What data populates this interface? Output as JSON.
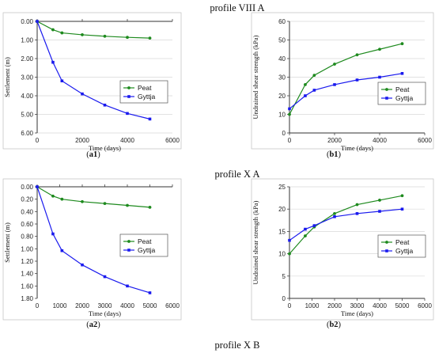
{
  "section_titles": [
    "profile VIII A",
    "profile X A",
    "profile X B"
  ],
  "chart_data": [
    {
      "id": "a1",
      "type": "line",
      "label": "a1",
      "xlabel": "Time (days)",
      "ylabel": "Settlement (m)",
      "xlim": [
        0,
        6000
      ],
      "xticks": [
        0,
        2000,
        4000,
        6000
      ],
      "ylim": [
        0,
        6
      ],
      "yticks": [
        "0.00",
        "1.00",
        "2.00",
        "3.00",
        "4.00",
        "5.00",
        "6.00"
      ],
      "y_inverted": true,
      "grid": "horizontal",
      "legend": "right",
      "series": [
        {
          "name": "Peat",
          "color": "#1e8a1e",
          "x": [
            0,
            700,
            1100,
            2000,
            3000,
            4000,
            5000
          ],
          "y": [
            0,
            0.45,
            0.62,
            0.72,
            0.8,
            0.86,
            0.9
          ]
        },
        {
          "name": "Gyttja",
          "color": "#1a1aee",
          "x": [
            0,
            700,
            1100,
            2000,
            3000,
            4000,
            5000
          ],
          "y": [
            0,
            2.2,
            3.2,
            3.9,
            4.5,
            4.95,
            5.25
          ]
        }
      ]
    },
    {
      "id": "b1",
      "type": "line",
      "label": "b1",
      "xlabel": "Time (days)",
      "ylabel": "Undrained shear strength (kPa)",
      "xlim": [
        0,
        6000
      ],
      "xticks": [
        0,
        2000,
        4000,
        6000
      ],
      "ylim": [
        0,
        60
      ],
      "yticks": [
        0,
        10,
        20,
        30,
        40,
        50,
        60
      ],
      "y_inverted": false,
      "grid": "horizontal",
      "legend": "right",
      "series": [
        {
          "name": "Peat",
          "color": "#1e8a1e",
          "x": [
            0,
            700,
            1100,
            2000,
            3000,
            4000,
            5000
          ],
          "y": [
            10,
            26,
            31,
            37,
            42,
            45,
            48
          ]
        },
        {
          "name": "Gyttja",
          "color": "#1a1aee",
          "x": [
            0,
            700,
            1100,
            2000,
            3000,
            4000,
            5000
          ],
          "y": [
            13,
            20,
            23,
            26,
            28.5,
            30,
            32
          ]
        }
      ]
    },
    {
      "id": "a2",
      "type": "line",
      "label": "a2",
      "xlabel": "Time (days)",
      "ylabel": "Settlement (m)",
      "xlim": [
        0,
        6000
      ],
      "xticks": [
        0,
        1000,
        2000,
        3000,
        4000,
        5000,
        6000
      ],
      "ylim": [
        0,
        1.8
      ],
      "yticks": [
        "0.00",
        "0.20",
        "0.40",
        "0.60",
        "0.80",
        "1.00",
        "1.20",
        "1.40",
        "1.60",
        "1.80"
      ],
      "y_inverted": true,
      "grid": "none",
      "legend": "right",
      "series": [
        {
          "name": "Peat",
          "color": "#1e8a1e",
          "x": [
            0,
            700,
            1100,
            2000,
            3000,
            4000,
            5000
          ],
          "y": [
            0,
            0.15,
            0.2,
            0.24,
            0.27,
            0.3,
            0.33
          ]
        },
        {
          "name": "Gyttja",
          "color": "#1a1aee",
          "x": [
            0,
            700,
            1100,
            2000,
            3000,
            4000,
            5000
          ],
          "y": [
            0,
            0.76,
            1.03,
            1.26,
            1.45,
            1.6,
            1.71
          ]
        }
      ]
    },
    {
      "id": "b2",
      "type": "line",
      "label": "b2",
      "xlabel": "Time (days)",
      "ylabel": "Undrained shear strength  (kPa)",
      "xlim": [
        0,
        6000
      ],
      "xticks": [
        0,
        1000,
        2000,
        3000,
        4000,
        5000,
        6000
      ],
      "ylim": [
        0,
        25
      ],
      "yticks": [
        0,
        5,
        10,
        15,
        20,
        25
      ],
      "y_inverted": false,
      "grid": "horizontal",
      "legend": "right",
      "series": [
        {
          "name": "Peat",
          "color": "#1e8a1e",
          "x": [
            0,
            700,
            1100,
            2000,
            3000,
            4000,
            5000
          ],
          "y": [
            10,
            14,
            16,
            19,
            21,
            22,
            23
          ]
        },
        {
          "name": "Gyttja",
          "color": "#1a1aee",
          "x": [
            0,
            700,
            1100,
            2000,
            3000,
            4000,
            5000
          ],
          "y": [
            13,
            15.5,
            16.3,
            18.3,
            19,
            19.5,
            20
          ]
        }
      ]
    }
  ]
}
